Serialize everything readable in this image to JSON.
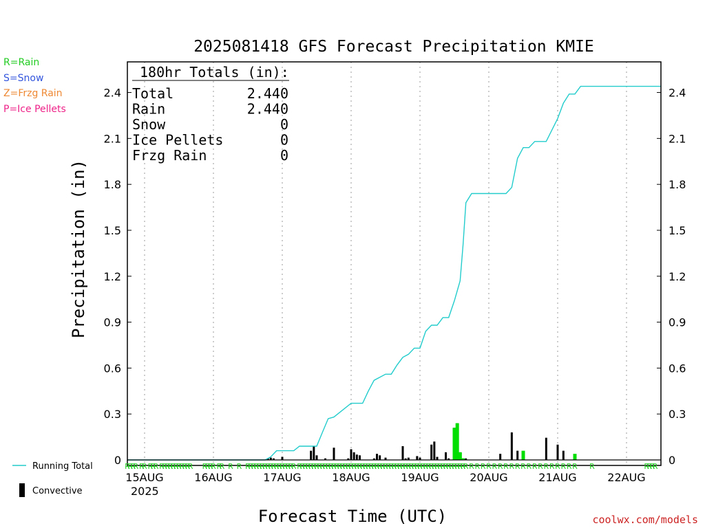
{
  "chart_data": {
    "type": "line",
    "title": "2025081418 GFS Forecast Precipitation KMIE",
    "xlabel": "Forecast Time (UTC)",
    "ylabel": "Precipitation (in)",
    "credit": "coolwx.com/models",
    "x_ticks": [
      "15AUG",
      "16AUG",
      "17AUG",
      "18AUG",
      "19AUG",
      "20AUG",
      "21AUG",
      "22AUG"
    ],
    "x_start_label": "2025",
    "xlim_hours": [
      -6,
      180
    ],
    "ylim": [
      0,
      2.6
    ],
    "y_ticks": [
      "0",
      "0.3",
      "0.6",
      "0.9",
      "1.2",
      "1.5",
      "1.8",
      "2.1",
      "2.4"
    ],
    "grid": "vertical dotted",
    "type_legend": [
      {
        "label": "R=Rain",
        "color": "#22cc22"
      },
      {
        "label": "S=Snow",
        "color": "#3355dd"
      },
      {
        "label": "Z=Frzg Rain",
        "color": "#ee8833"
      },
      {
        "label": "P=Ice Pellets",
        "color": "#ee2288"
      }
    ],
    "totals_box": {
      "header": "180hr Totals (in):",
      "rows": [
        {
          "label": "Total",
          "value": "2.440"
        },
        {
          "label": "Rain",
          "value": "2.440"
        },
        {
          "label": "Snow",
          "value": "0"
        },
        {
          "label": "Ice Pellets",
          "value": "0"
        },
        {
          "label": "Frzg Rain",
          "value": "0"
        }
      ]
    },
    "series": [
      {
        "name": "Running Total",
        "color": "#22cccc",
        "x_hours": [
          -6,
          42,
          44,
          46,
          52,
          54,
          60,
          62,
          64,
          66,
          72,
          74,
          76,
          78,
          80,
          84,
          86,
          88,
          90,
          92,
          94,
          96,
          98,
          100,
          102,
          104,
          106,
          108,
          110,
          111,
          112,
          114,
          126,
          128,
          130,
          132,
          134,
          136,
          138,
          140,
          144,
          146,
          148,
          150,
          152,
          154,
          156,
          180
        ],
        "y": [
          0,
          0,
          0.02,
          0.06,
          0.06,
          0.09,
          0.09,
          0.18,
          0.27,
          0.28,
          0.37,
          0.37,
          0.37,
          0.45,
          0.52,
          0.56,
          0.56,
          0.62,
          0.67,
          0.69,
          0.73,
          0.73,
          0.84,
          0.88,
          0.88,
          0.93,
          0.93,
          1.04,
          1.17,
          1.4,
          1.68,
          1.74,
          1.74,
          1.78,
          1.97,
          2.04,
          2.04,
          2.08,
          2.08,
          2.08,
          2.23,
          2.33,
          2.39,
          2.39,
          2.44,
          2.44,
          2.44,
          2.44
        ]
      },
      {
        "name": "Convective",
        "color": "#000000",
        "x_hours": [
          43,
          44,
          45,
          48,
          58,
          59,
          60,
          63,
          66,
          71,
          72,
          73,
          74,
          75,
          80,
          81,
          82,
          84,
          90,
          91,
          92,
          95,
          96,
          100,
          101,
          102,
          105,
          106,
          108,
          109,
          110,
          111,
          112,
          124,
          128,
          130,
          140,
          144,
          146
        ],
        "y": [
          0.01,
          0.015,
          0.01,
          0.02,
          0.06,
          0.09,
          0.03,
          0.01,
          0.08,
          0.01,
          0.07,
          0.05,
          0.035,
          0.03,
          0.01,
          0.04,
          0.03,
          0.015,
          0.09,
          0.01,
          0.015,
          0.025,
          0.015,
          0.1,
          0.12,
          0.02,
          0.05,
          0.01,
          0.21,
          0.24,
          0.05,
          0.01,
          0.01,
          0.04,
          0.18,
          0.06,
          0.145,
          0.1,
          0.06
        ]
      },
      {
        "name": "Rain",
        "color": "#00dd00",
        "x_hours": [
          108,
          109,
          110,
          111,
          132,
          150
        ],
        "y": [
          0.21,
          0.24,
          0.05,
          0.01,
          0.06,
          0.04
        ]
      }
    ],
    "type_markers": {
      "label": "R",
      "x_hours": [
        -6,
        -5,
        -4,
        -3,
        -1,
        0,
        2,
        3,
        4,
        6,
        7,
        8,
        9,
        10,
        11,
        12,
        13,
        14,
        15,
        16,
        21,
        22,
        23,
        24,
        26,
        27,
        30,
        33,
        36,
        37,
        38,
        39,
        40,
        41,
        42,
        43,
        44,
        45,
        46,
        47,
        48,
        49,
        50,
        51,
        52,
        54,
        55,
        56,
        57,
        58,
        59,
        60,
        61,
        62,
        63,
        64,
        65,
        66,
        67,
        68,
        69,
        70,
        71,
        72,
        73,
        74,
        75,
        76,
        77,
        78,
        79,
        80,
        81,
        82,
        83,
        84,
        85,
        86,
        87,
        88,
        89,
        90,
        91,
        92,
        93,
        94,
        95,
        96,
        97,
        98,
        99,
        100,
        101,
        102,
        103,
        104,
        105,
        106,
        107,
        108,
        109,
        110,
        111,
        112,
        114,
        116,
        118,
        120,
        122,
        124,
        126,
        128,
        130,
        132,
        134,
        136,
        138,
        140,
        142,
        144,
        146,
        148,
        150,
        156,
        175,
        176,
        177,
        178
      ]
    }
  },
  "legend": {
    "running_total": "Running Total",
    "convective": "Convective"
  }
}
